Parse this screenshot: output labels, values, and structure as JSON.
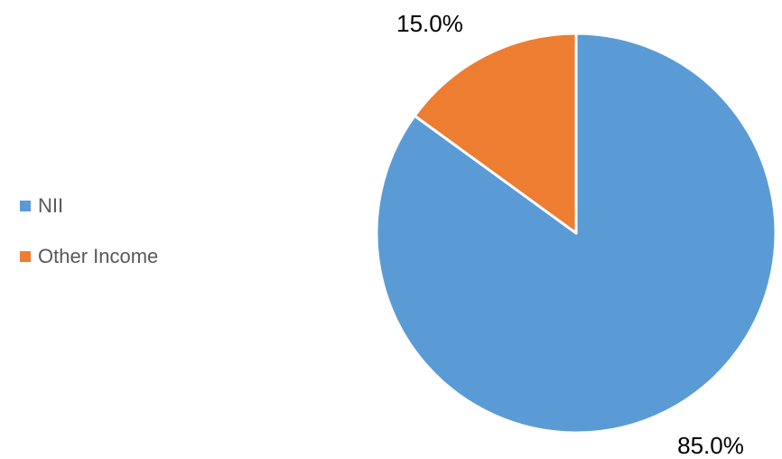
{
  "chart_data": {
    "type": "pie",
    "categories": [
      "NII",
      "Other Income"
    ],
    "values": [
      85.0,
      15.0
    ],
    "data_labels": [
      "85.0%",
      "15.0%"
    ],
    "colors": [
      "#5B9BD5",
      "#ED7D31"
    ],
    "start_angle_deg": 0,
    "direction": "clockwise",
    "legend_position": "left",
    "title": ""
  }
}
